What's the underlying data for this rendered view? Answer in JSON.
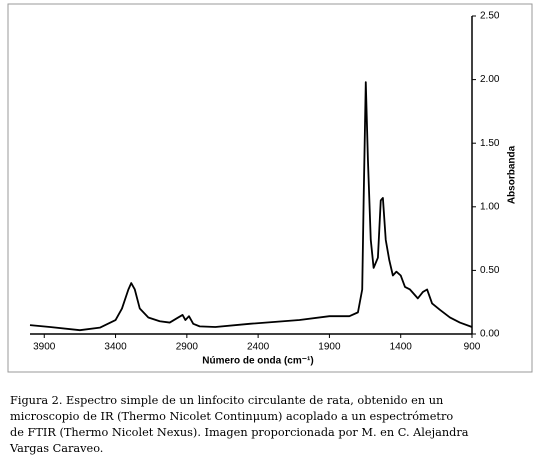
{
  "chart_data": {
    "type": "line",
    "xlabel": "Número de onda (cm⁻¹)",
    "ylabel": "Absorbanda",
    "x": [
      4000,
      3860,
      3650,
      3510,
      3400,
      3355,
      3310,
      3290,
      3265,
      3230,
      3170,
      3090,
      3020,
      2960,
      2930,
      2910,
      2885,
      2855,
      2810,
      2700,
      2460,
      2110,
      1900,
      1760,
      1700,
      1670,
      1660,
      1645,
      1630,
      1610,
      1590,
      1560,
      1540,
      1525,
      1505,
      1480,
      1455,
      1430,
      1400,
      1370,
      1335,
      1280,
      1245,
      1215,
      1180,
      1125,
      1055,
      985,
      900
    ],
    "values": [
      0.07,
      0.055,
      0.03,
      0.05,
      0.11,
      0.2,
      0.35,
      0.4,
      0.35,
      0.2,
      0.13,
      0.1,
      0.09,
      0.13,
      0.15,
      0.11,
      0.14,
      0.08,
      0.06,
      0.055,
      0.08,
      0.11,
      0.14,
      0.14,
      0.17,
      0.35,
      1.05,
      1.98,
      1.37,
      0.74,
      0.52,
      0.6,
      1.05,
      1.07,
      0.74,
      0.58,
      0.46,
      0.49,
      0.46,
      0.37,
      0.35,
      0.28,
      0.33,
      0.35,
      0.24,
      0.19,
      0.13,
      0.09,
      0.055
    ],
    "color": "#000000",
    "xlim": [
      4000,
      900
    ],
    "xticks": [
      3900,
      3400,
      2900,
      2400,
      1900,
      1400,
      900
    ],
    "ylim": [
      0,
      2.5
    ],
    "yticks": [
      {
        "value": 0,
        "label": "0.00"
      },
      {
        "value": 0.5,
        "label": "0.50"
      },
      {
        "value": 1,
        "label": "1.00"
      },
      {
        "value": 1.5,
        "label": "1.50"
      },
      {
        "value": 2,
        "label": "2.00"
      },
      {
        "value": 2.5,
        "label": "2.50"
      }
    ],
    "caption_lines": [
      "Figura 2. Espectro simple de un linfocito circulante de rata, obtenido en un",
      "microscopio de IR (Thermo Nicolet Continμum) acoplado a un espectrómetro",
      "de FTIR (Thermo Nicolet Nexus). Imagen proporcionada por M. en C. Alejandra",
      "Vargas Caraveo."
    ]
  }
}
